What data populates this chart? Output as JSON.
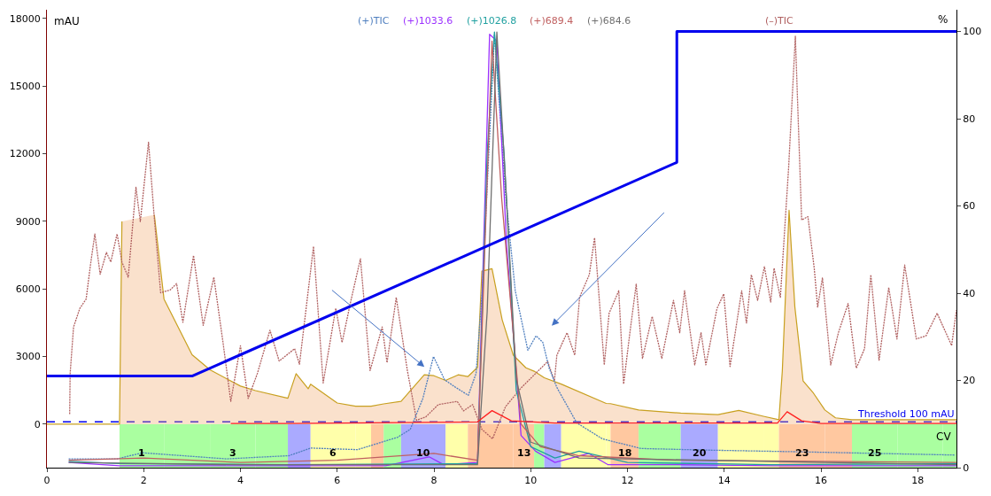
{
  "chart_data": {
    "type": "line",
    "xlabel": "CV",
    "ylabel": "mAU",
    "y2label": "%",
    "xlim": [
      0,
      18.8
    ],
    "xticks": [
      0,
      2,
      4,
      6,
      8,
      10,
      12,
      14,
      16,
      18
    ],
    "ylim": [
      -1930,
      18390
    ],
    "yticks": [
      0,
      3000,
      6000,
      9000,
      12000,
      15000,
      18000
    ],
    "y2lim": [
      0,
      105
    ],
    "y2ticks": [
      0,
      20,
      40,
      60,
      80,
      100
    ],
    "grid": false,
    "series": [
      {
        "type": "area",
        "color": "#c8a020",
        "x": [
          0,
          1.45,
          1.5,
          1.55,
          1.62,
          2.1,
          2.22,
          2.42,
          3.0,
          3.37,
          4.0,
          4.31,
          4.98,
          5.15,
          5.4,
          5.45,
          6.0,
          6.38,
          6.7,
          6.96,
          7.32,
          7.8,
          8.0,
          8.24,
          8.5,
          8.7,
          8.9,
          8.99,
          9.2,
          9.41,
          9.64,
          9.9,
          10.07,
          10.28,
          10.63,
          11.56,
          11.65,
          12.23,
          13.1,
          13.87,
          14.3,
          14.81,
          15.13,
          15.2,
          15.34,
          15.46,
          15.63,
          15.83,
          16.08,
          16.3,
          16.64,
          17.58,
          18.52,
          18.8
        ],
        "values": [
          0,
          0,
          0,
          9000,
          null,
          null,
          9290,
          5550,
          3080,
          2410,
          1690,
          1490,
          1150,
          2240,
          1570,
          1770,
          940,
          800,
          800,
          900,
          1010,
          2190,
          2150,
          1940,
          2190,
          2110,
          2520,
          6790,
          6900,
          4630,
          3060,
          2500,
          2350,
          2060,
          1780,
          920,
          910,
          630,
          490,
          420,
          610,
          350,
          200,
          2350,
          9490,
          5200,
          1920,
          1420,
          630,
          280,
          200,
          200,
          200,
          200
        ]
      },
      {
        "name": "(–)TIC",
        "color": "#b06060",
        "line_style": "dotted",
        "x": [
          0.47,
          0.48,
          0.55,
          0.68,
          0.81,
          0.9,
          0.99,
          1.1,
          1.23,
          1.32,
          1.45,
          1.55,
          1.68,
          1.84,
          1.93,
          2.1,
          2.22,
          2.35,
          2.55,
          2.68,
          2.81,
          3.03,
          3.23,
          3.45,
          3.64,
          3.8,
          4.0,
          4.16,
          4.35,
          4.61,
          4.8,
          5.12,
          5.22,
          5.51,
          5.71,
          5.97,
          6.1,
          6.29,
          6.48,
          6.68,
          6.93,
          7.03,
          7.22,
          7.45,
          7.64,
          7.83,
          8.09,
          8.48,
          8.61,
          8.8,
          8.99,
          9.21,
          9.48,
          9.81,
          10.35,
          10.49,
          10.54,
          10.75,
          10.91,
          11.01,
          11.21,
          11.32,
          11.52,
          11.62,
          11.82,
          11.92,
          12.05,
          12.18,
          12.31,
          12.51,
          12.71,
          12.95,
          13.08,
          13.18,
          13.39,
          13.52,
          13.62,
          13.85,
          13.99,
          14.12,
          14.36,
          14.46,
          14.56,
          14.69,
          14.83,
          14.96,
          15.03,
          15.16,
          15.33,
          15.47,
          15.6,
          15.73,
          15.86,
          15.93,
          16.03,
          16.2,
          16.36,
          16.56,
          16.73,
          16.9,
          17.03,
          17.2,
          17.4,
          17.57,
          17.73,
          17.97,
          18.17,
          18.4,
          18.7,
          18.8
        ],
        "values": [
          450,
          2250,
          4310,
          5140,
          5550,
          7070,
          8440,
          6650,
          7620,
          7200,
          8440,
          7200,
          6520,
          10510,
          8990,
          12510,
          9130,
          5830,
          5960,
          6240,
          4520,
          7480,
          4380,
          6520,
          3620,
          1010,
          3480,
          1140,
          2250,
          4170,
          2800,
          3350,
          2660,
          7890,
          1830,
          5140,
          3620,
          5550,
          7340,
          2380,
          4310,
          2730,
          5620,
          2380,
          180,
          320,
          870,
          1010,
          590,
          870,
          -230,
          -650,
          780,
          1630,
          2780,
          1920,
          3060,
          4060,
          3060,
          5630,
          6630,
          8270,
          2630,
          4920,
          5920,
          1780,
          4060,
          6210,
          2920,
          4780,
          2920,
          5490,
          4060,
          5920,
          2630,
          4060,
          2630,
          5130,
          5780,
          2560,
          5920,
          4490,
          6630,
          5490,
          6990,
          5420,
          6920,
          5630,
          11350,
          17210,
          9060,
          9210,
          6920,
          5200,
          6490,
          2630,
          4060,
          5350,
          2490,
          3350,
          6630,
          2840,
          6060,
          3780,
          7060,
          3780,
          3920,
          4920,
          3490,
          5060
        ]
      },
      {
        "name": "(+)TIC",
        "color": "#4f7fbf",
        "line_style": "dotted",
        "x": [
          0.45,
          1.45,
          1.97,
          3.71,
          5.0,
          5.45,
          6.42,
          7.25,
          7.51,
          7.77,
          7.99,
          8.22,
          8.45,
          8.71,
          8.87,
          9.0,
          9.25,
          9.48,
          9.68,
          9.94,
          10.11,
          10.25,
          10.38,
          10.54,
          10.95,
          11.48,
          12.28,
          13.62,
          15.63,
          18.77
        ],
        "values": [
          -1540,
          -1540,
          -1270,
          -1540,
          -1400,
          -1060,
          -1130,
          -580,
          -230,
          1140,
          3000,
          1970,
          1630,
          1280,
          2250,
          6000,
          17300,
          10200,
          5920,
          3280,
          3920,
          3630,
          2490,
          1630,
          60,
          -650,
          -1080,
          -1150,
          -1230,
          -1370
        ]
      },
      {
        "name": "(+)1033.6",
        "color": "#9b30ff",
        "x": [
          0.45,
          1.5,
          3.0,
          5.0,
          7.0,
          7.9,
          8.2,
          8.9,
          9.15,
          9.3,
          9.5,
          9.8,
          10.1,
          10.5,
          11.2,
          11.6,
          13.0,
          15.0,
          18.8
        ],
        "values": [
          -1700,
          -1850,
          -1850,
          -1850,
          -1850,
          -1450,
          -1800,
          -1700,
          17300,
          17000,
          8000,
          -500,
          -1200,
          -1700,
          -1300,
          -1800,
          -1800,
          -1850,
          -1850
        ]
      },
      {
        "name": "(+)1026.8",
        "color": "#20a0a0",
        "x": [
          0.45,
          1.5,
          5.0,
          8.9,
          9.1,
          9.25,
          9.45,
          9.7,
          10.0,
          10.5,
          11.0,
          12.0,
          15.0,
          18.8
        ],
        "values": [
          -1650,
          -1750,
          -1800,
          -1750,
          12000,
          17400,
          12000,
          1500,
          -1000,
          -1500,
          -1200,
          -1700,
          -1800,
          -1750
        ]
      },
      {
        "name": "(+)689.4",
        "color": "#c06060",
        "x": [
          0.45,
          2.0,
          4.0,
          6.0,
          8.0,
          8.9,
          9.2,
          9.4,
          9.8,
          10.2,
          11.0,
          13.0,
          18.8
        ],
        "values": [
          -1600,
          -1500,
          -1700,
          -1600,
          -1300,
          -1600,
          17000,
          10000,
          0,
          -1000,
          -1400,
          -1600,
          -1700
        ]
      },
      {
        "name": "(+)684.6",
        "color": "#707070",
        "x": [
          0.45,
          4.0,
          8.9,
          9.1,
          9.3,
          9.5,
          9.7,
          10.0,
          11.0,
          18.8
        ],
        "values": [
          -1700,
          -1800,
          -1800,
          5000,
          17400,
          10000,
          2000,
          -800,
          -1500,
          -1800
        ]
      },
      {
        "color": "#ff2020",
        "x": [
          3.8,
          5.0,
          8.9,
          9.2,
          9.6,
          10.5,
          15.1,
          15.3,
          15.6,
          16.0,
          18.8
        ],
        "values": [
          30,
          30,
          100,
          600,
          150,
          50,
          50,
          550,
          150,
          30,
          30
        ]
      },
      {
        "axis": "y2",
        "color": "#0000ee",
        "x": [
          0,
          3.0,
          13.02,
          13.02,
          18.8
        ],
        "values": [
          21,
          21,
          70,
          100,
          100
        ]
      }
    ],
    "ref_lines": [
      {
        "axis": "y",
        "value": 100,
        "label": "Threshold 100 mAU",
        "color": "#0000ee",
        "line_style": "dashed"
      }
    ],
    "bands": [
      {
        "axis": "x",
        "from": 1.5,
        "to": 2.42,
        "label": "1",
        "color": "#aaffa0"
      },
      {
        "axis": "x",
        "from": 2.42,
        "to": 3.37,
        "label": null,
        "color": "#aaffa0"
      },
      {
        "axis": "x",
        "from": 3.37,
        "to": 4.31,
        "label": "3",
        "color": "#aaffa0"
      },
      {
        "axis": "x",
        "from": 4.31,
        "to": 4.98,
        "label": null,
        "color": "#aaffa0"
      },
      {
        "axis": "x",
        "from": 4.98,
        "to": 5.45,
        "label": null,
        "color": "#aaaaff"
      },
      {
        "axis": "x",
        "from": 5.45,
        "to": 6.38,
        "label": "6",
        "color": "#ffffaa"
      },
      {
        "axis": "x",
        "from": 6.38,
        "to": 6.7,
        "label": null,
        "color": "#ffffaa"
      },
      {
        "axis": "x",
        "from": 6.7,
        "to": 6.96,
        "label": null,
        "color": "#ffc8a0"
      },
      {
        "axis": "x",
        "from": 6.96,
        "to": 7.32,
        "label": null,
        "color": "#aaffa0"
      },
      {
        "axis": "x",
        "from": 7.32,
        "to": 8.24,
        "label": "10",
        "color": "#aaaaff"
      },
      {
        "axis": "x",
        "from": 8.24,
        "to": 8.7,
        "label": null,
        "color": "#ffffaa"
      },
      {
        "axis": "x",
        "from": 8.7,
        "to": 9.64,
        "label": null,
        "color": "#ffc8a0"
      },
      {
        "axis": "x",
        "from": 9.64,
        "to": 10.07,
        "label": "13",
        "color": "#ffc8a0"
      },
      {
        "axis": "x",
        "from": 10.07,
        "to": 10.28,
        "label": null,
        "color": "#aaffa0"
      },
      {
        "axis": "x",
        "from": 10.28,
        "to": 10.63,
        "label": null,
        "color": "#aaaaff"
      },
      {
        "axis": "x",
        "from": 10.63,
        "to": 11.56,
        "label": null,
        "color": "#ffffaa"
      },
      {
        "axis": "x",
        "from": 11.56,
        "to": 11.65,
        "label": null,
        "color": "#ffffaa"
      },
      {
        "axis": "x",
        "from": 11.65,
        "to": 12.23,
        "label": "18",
        "color": "#ffc8a0"
      },
      {
        "axis": "x",
        "from": 12.23,
        "to": 13.1,
        "label": null,
        "color": "#aaffa0"
      },
      {
        "axis": "x",
        "from": 13.1,
        "to": 13.87,
        "label": "20",
        "color": "#aaaaff"
      },
      {
        "axis": "x",
        "from": 13.87,
        "to": 14.81,
        "label": null,
        "color": "#ffffaa"
      },
      {
        "axis": "x",
        "from": 14.81,
        "to": 15.13,
        "label": null,
        "color": "#ffffaa"
      },
      {
        "axis": "x",
        "from": 15.13,
        "to": 16.08,
        "label": "23",
        "color": "#ffc8a0"
      },
      {
        "axis": "x",
        "from": 16.08,
        "to": 16.64,
        "label": null,
        "color": "#ffc8a0"
      },
      {
        "axis": "x",
        "from": 16.64,
        "to": 17.58,
        "label": "25",
        "color": "#aaffa0"
      },
      {
        "axis": "x",
        "from": 17.58,
        "to": 18.52,
        "label": null,
        "color": "#aaffa0"
      },
      {
        "axis": "x",
        "from": 18.52,
        "to": 18.8,
        "label": null,
        "color": "#aaffa0"
      }
    ]
  }
}
